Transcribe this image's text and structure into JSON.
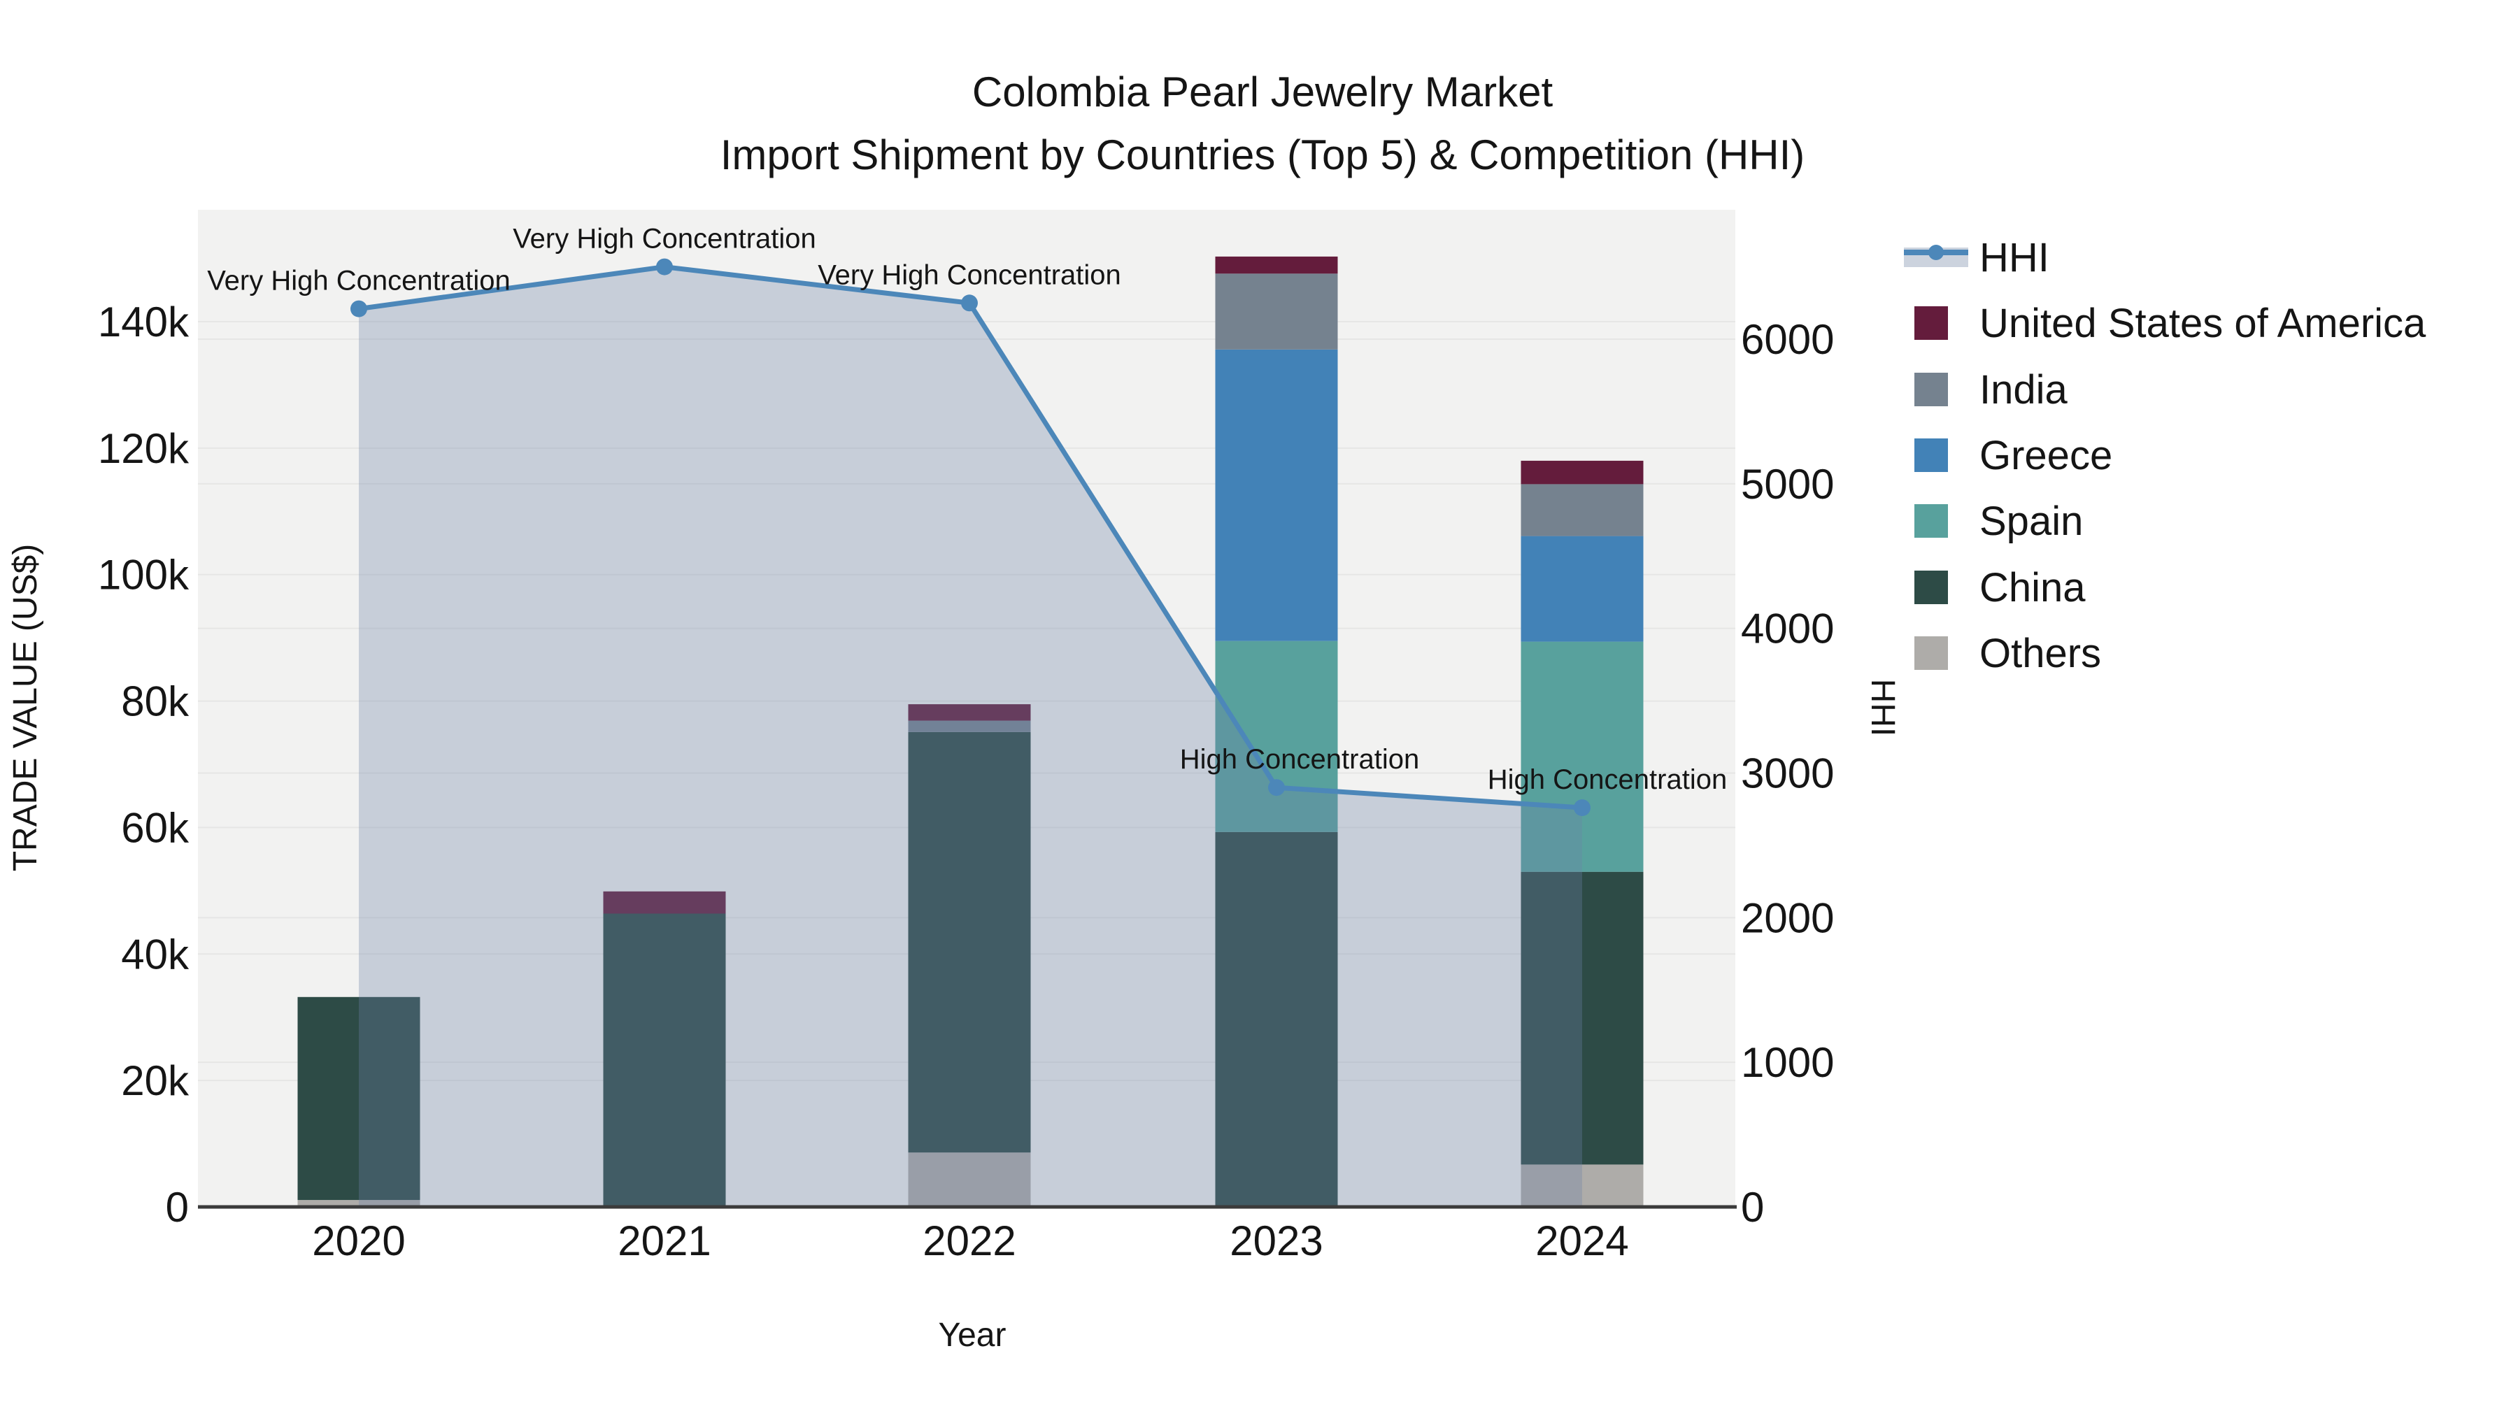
{
  "title": {
    "line1": "Colombia Pearl Jewelry Market",
    "line2": "Import Shipment by Countries (Top 5) & Competition (HHI)"
  },
  "axes": {
    "x_label": "Year",
    "y_left_label": "TRADE VALUE (US$)",
    "y_right_label": "HHI",
    "x_ticks": [
      "2020",
      "2021",
      "2022",
      "2023",
      "2024"
    ],
    "y_left_ticks": [
      "0",
      "20k",
      "40k",
      "60k",
      "80k",
      "100k",
      "120k",
      "140k"
    ],
    "y_right_ticks": [
      "0",
      "1000",
      "2000",
      "3000",
      "4000",
      "5000",
      "6000"
    ]
  },
  "legend": [
    {
      "label": "HHI",
      "type": "line",
      "color": "#4c87b9",
      "fill": "#ccd3de"
    },
    {
      "label": "United States of America",
      "type": "patch",
      "color": "#641c3c"
    },
    {
      "label": "India",
      "type": "patch",
      "color": "#75828f"
    },
    {
      "label": "Greece",
      "type": "patch",
      "color": "#4282b7"
    },
    {
      "label": "Spain",
      "type": "patch",
      "color": "#58a19d"
    },
    {
      "label": "China",
      "type": "patch",
      "color": "#2d4b46"
    },
    {
      "label": "Others",
      "type": "patch",
      "color": "#aeaca9"
    }
  ],
  "chart_data": {
    "type": "combo-stacked-bar-line",
    "title": "Colombia Pearl Jewelry Market — Import Shipment by Countries (Top 5) & Competition (HHI)",
    "categories": [
      "2020",
      "2021",
      "2022",
      "2023",
      "2024"
    ],
    "bar_unit": "US$",
    "ylim_left": [
      0,
      140000
    ],
    "ylim_right": [
      0,
      6000
    ],
    "grid": true,
    "legend_position": "top-right",
    "series": [
      {
        "name": "Others",
        "color": "#aeaca9",
        "values": [
          1100,
          0,
          8600,
          0,
          6700
        ]
      },
      {
        "name": "China",
        "color": "#2d4b46",
        "values": [
          32100,
          46400,
          66500,
          59300,
          46300
        ]
      },
      {
        "name": "Spain",
        "color": "#58a19d",
        "values": [
          0,
          0,
          0,
          30200,
          36400
        ]
      },
      {
        "name": "Greece",
        "color": "#4282b7",
        "values": [
          0,
          0,
          0,
          46100,
          16700
        ]
      },
      {
        "name": "India",
        "color": "#75828f",
        "values": [
          0,
          0,
          1800,
          12000,
          8200
        ]
      },
      {
        "name": "United States of America",
        "color": "#641c3c",
        "values": [
          0,
          3500,
          2600,
          2700,
          3700
        ]
      }
    ],
    "bar_totals": [
      33200,
      49900,
      79500,
      150300,
      118000
    ],
    "hhi": {
      "name": "HHI",
      "axis": "right",
      "color": "#4c87b9",
      "area_fill": "rgba(108,132,168,0.32)",
      "values": [
        6210,
        6500,
        6250,
        2900,
        2760
      ]
    },
    "annotations": [
      {
        "category": "2020",
        "text": "Very High Concentration"
      },
      {
        "category": "2021",
        "text": "Very High Concentration"
      },
      {
        "category": "2022",
        "text": "Very High Concentration"
      },
      {
        "category": "2023",
        "text": "High Concentration"
      },
      {
        "category": "2024",
        "text": "High Concentration"
      }
    ]
  }
}
